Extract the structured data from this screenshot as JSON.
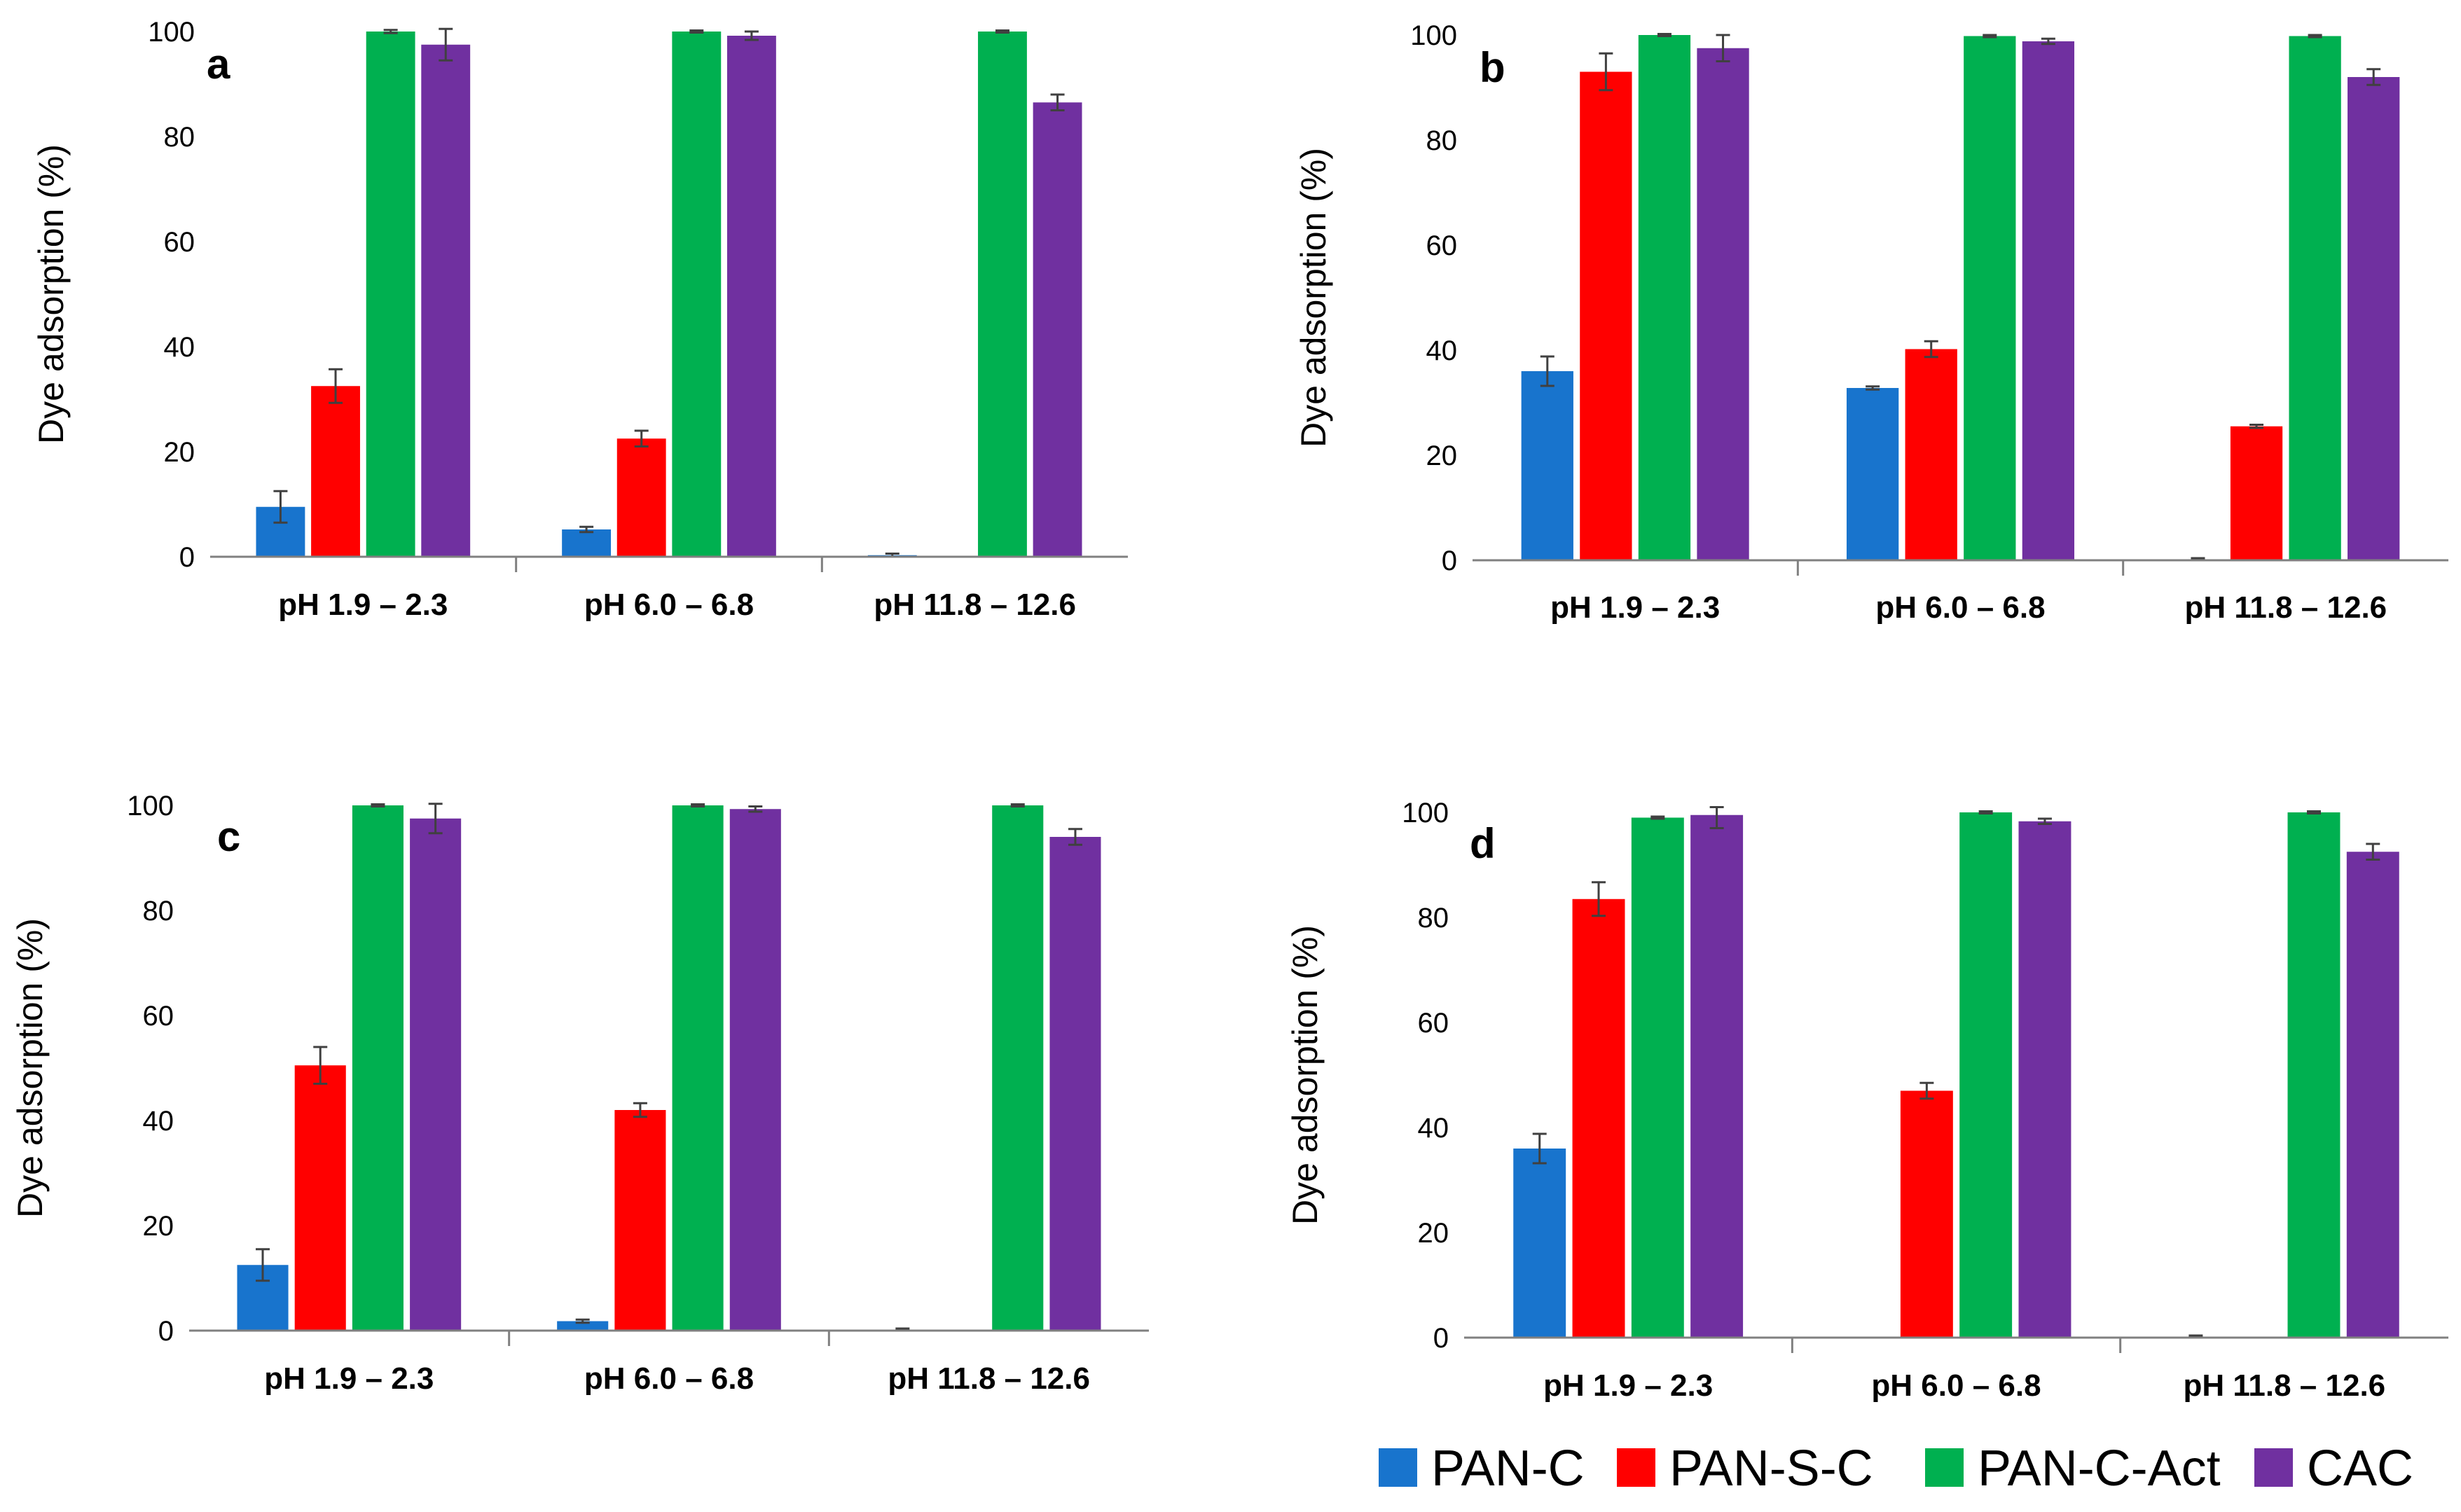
{
  "legend": [
    {
      "name": "PAN-C",
      "color": "#1874CD"
    },
    {
      "name": "PAN-S-C",
      "color": "#FF0000"
    },
    {
      "name": "PAN-C-Act",
      "color": "#00B050"
    },
    {
      "name": "CAC",
      "color": "#7030A0"
    }
  ],
  "chart_data": [
    {
      "type": "bar",
      "panel_label": "a",
      "categories": [
        "pH 1.9 – 2.3",
        "pH 6.0 – 6.8",
        "pH 11.8 – 12.6"
      ],
      "ylabel": "Dye adsorption (%)",
      "ylim": [
        0,
        100
      ],
      "yticks": [
        0,
        20,
        40,
        60,
        80,
        100
      ],
      "series": [
        {
          "name": "PAN-C",
          "values": [
            9.5,
            5.2,
            0.3
          ],
          "errors": [
            3.0,
            0.5,
            0.3
          ]
        },
        {
          "name": "PAN-S-C",
          "values": [
            32.5,
            22.5,
            0
          ],
          "errors": [
            3.2,
            1.5,
            0
          ]
        },
        {
          "name": "PAN-C-Act",
          "values": [
            100,
            100,
            100
          ],
          "errors": [
            0.3,
            0.2,
            0.2
          ]
        },
        {
          "name": "CAC",
          "values": [
            97.5,
            99.2,
            86.5
          ],
          "errors": [
            3.0,
            0.8,
            1.5
          ]
        }
      ]
    },
    {
      "type": "bar",
      "panel_label": "b",
      "categories": [
        "pH 1.9 – 2.3",
        "pH 6.0 – 6.8",
        "pH 11.8 – 12.6"
      ],
      "ylabel": "Dye adsorption (%)",
      "ylim": [
        0,
        100
      ],
      "yticks": [
        0,
        20,
        40,
        60,
        80,
        100
      ],
      "series": [
        {
          "name": "PAN-C",
          "values": [
            36,
            32.8,
            0.2
          ],
          "errors": [
            2.8,
            0.3,
            0.2
          ]
        },
        {
          "name": "PAN-S-C",
          "values": [
            93,
            40.2,
            25.5
          ],
          "errors": [
            3.5,
            1.5,
            0.3
          ]
        },
        {
          "name": "PAN-C-Act",
          "values": [
            100,
            99.8,
            99.8
          ],
          "errors": [
            0.2,
            0.2,
            0.2
          ]
        },
        {
          "name": "CAC",
          "values": [
            97.5,
            98.8,
            92
          ],
          "errors": [
            2.5,
            0.5,
            1.5
          ]
        }
      ]
    },
    {
      "type": "bar",
      "panel_label": "c",
      "categories": [
        "pH 1.9 – 2.3",
        "pH 6.0 – 6.8",
        "pH 11.8 – 12.6"
      ],
      "ylabel": "Dye adsorption (%)",
      "ylim": [
        0,
        100
      ],
      "yticks": [
        0,
        20,
        40,
        60,
        80,
        100
      ],
      "series": [
        {
          "name": "PAN-C",
          "values": [
            12.5,
            1.8,
            0.2
          ],
          "errors": [
            3.0,
            0.3,
            0.2
          ]
        },
        {
          "name": "PAN-S-C",
          "values": [
            50.5,
            42,
            0
          ],
          "errors": [
            3.5,
            1.3,
            0
          ]
        },
        {
          "name": "PAN-C-Act",
          "values": [
            100,
            100,
            100
          ],
          "errors": [
            0.2,
            0.2,
            0.2
          ]
        },
        {
          "name": "CAC",
          "values": [
            97.5,
            99.3,
            94
          ],
          "errors": [
            2.8,
            0.5,
            1.5
          ]
        }
      ]
    },
    {
      "type": "bar",
      "panel_label": "d",
      "categories": [
        "pH 1.9 – 2.3",
        "pH 6.0 – 6.8",
        "pH 11.8 – 12.6"
      ],
      "ylabel": "Dye adsorption (%)",
      "ylim": [
        0,
        100
      ],
      "yticks": [
        0,
        20,
        40,
        60,
        80,
        100
      ],
      "series": [
        {
          "name": "PAN-C",
          "values": [
            36,
            0,
            0.2
          ],
          "errors": [
            2.8,
            0,
            0.2
          ]
        },
        {
          "name": "PAN-S-C",
          "values": [
            83.5,
            47,
            0
          ],
          "errors": [
            3.2,
            1.5,
            0
          ]
        },
        {
          "name": "PAN-C-Act",
          "values": [
            99,
            100,
            100
          ],
          "errors": [
            0.2,
            0.2,
            0.2
          ]
        },
        {
          "name": "CAC",
          "values": [
            99.5,
            98.3,
            92.5
          ],
          "errors": [
            2.5,
            0.5,
            1.5
          ]
        }
      ]
    }
  ]
}
